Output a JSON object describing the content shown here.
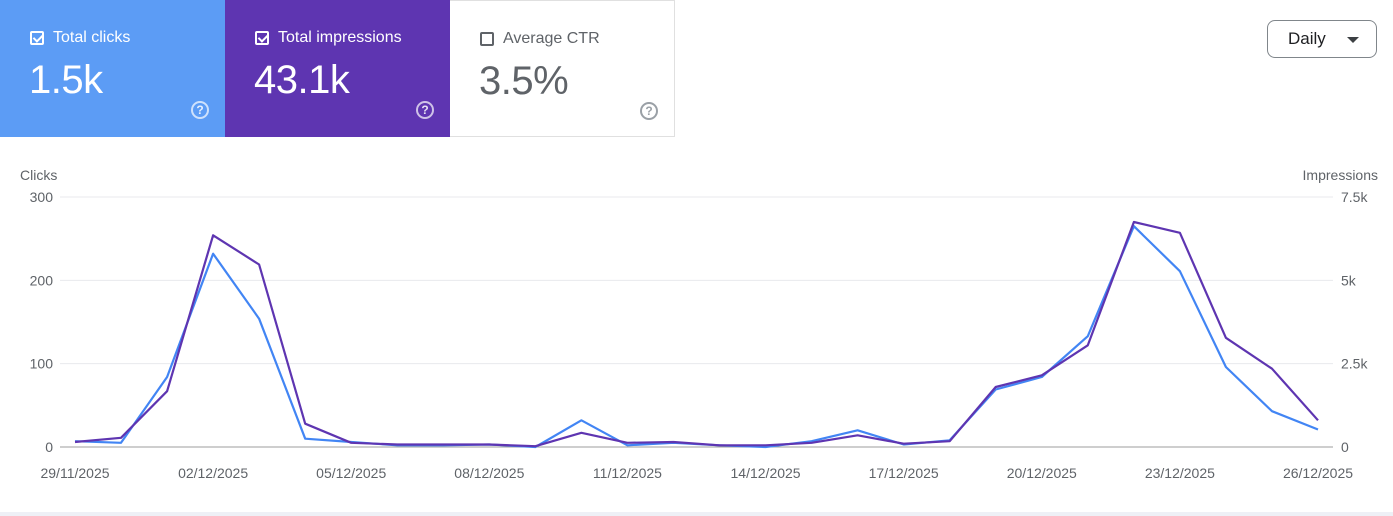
{
  "cards": {
    "clicks": {
      "label": "Total clicks",
      "value": "1.5k",
      "color": "#5c9cf5",
      "checked": true
    },
    "impressions": {
      "label": "Total impressions",
      "value": "43.1k",
      "color": "#5e35b1",
      "checked": true
    },
    "ctr": {
      "label": "Average CTR",
      "value": "3.5%",
      "checked": false
    }
  },
  "help_glyph": "?",
  "granularity": {
    "label": "Daily"
  },
  "chart_data": {
    "type": "line",
    "x": [
      "29/11/2025",
      "30/11/2025",
      "01/12/2025",
      "02/12/2025",
      "03/12/2025",
      "04/12/2025",
      "05/12/2025",
      "06/12/2025",
      "07/12/2025",
      "08/12/2025",
      "09/12/2025",
      "10/12/2025",
      "11/12/2025",
      "12/12/2025",
      "13/12/2025",
      "14/12/2025",
      "15/12/2025",
      "16/12/2025",
      "17/12/2025",
      "18/12/2025",
      "19/12/2025",
      "20/12/2025",
      "21/12/2025",
      "22/12/2025",
      "23/12/2025",
      "24/12/2025",
      "25/12/2025",
      "26/12/2025"
    ],
    "x_tick_labels": [
      "29/11/2025",
      "02/12/2025",
      "05/12/2025",
      "08/12/2025",
      "11/12/2025",
      "14/12/2025",
      "17/12/2025",
      "20/12/2025",
      "23/12/2025",
      "26/12/2025"
    ],
    "left_axis": {
      "label": "Clicks",
      "ticks": [
        "0",
        "100",
        "200",
        "300"
      ],
      "range": [
        0,
        300
      ]
    },
    "right_axis": {
      "label": "Impressions",
      "ticks": [
        "0",
        "2.5k",
        "5k",
        "7.5k"
      ],
      "range": [
        0,
        7500
      ]
    },
    "series": [
      {
        "axis": "left",
        "color": "#4285f4",
        "values": [
          7,
          5,
          84,
          232,
          154,
          10,
          6,
          2,
          2,
          3,
          0,
          32,
          2,
          5,
          2,
          0,
          7,
          20,
          3,
          8,
          69,
          84,
          133,
          265,
          211,
          96,
          43,
          21
        ]
      },
      {
        "axis": "right",
        "color": "#5e35b1",
        "values": [
          150,
          275,
          1675,
          6350,
          5475,
          700,
          125,
          75,
          75,
          75,
          25,
          425,
          125,
          150,
          50,
          50,
          125,
          350,
          100,
          175,
          1800,
          2150,
          3050,
          6750,
          6425,
          3275,
          2350,
          800
        ]
      }
    ],
    "grid": true
  }
}
